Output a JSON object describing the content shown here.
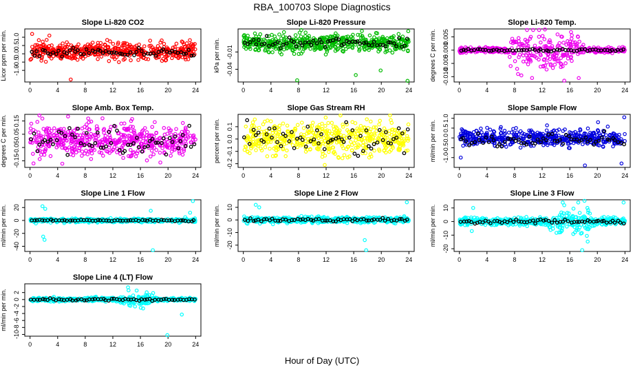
{
  "page": {
    "title": "RBA_100703  Slope Diagnostics",
    "xlabel": "Hour of Day (UTC)"
  },
  "colors": {
    "axis": "#000000",
    "overlay_points": "#000000"
  },
  "chart_data": [
    {
      "type": "scatter",
      "title": "Slope Li-820 CO2",
      "ylabel": "Licor ppm per min.",
      "xlim": [
        0,
        24
      ],
      "ylim": [
        -1.7,
        1.5
      ],
      "yticks": [
        -1.0,
        -0.5,
        0.0,
        0.5,
        1.0
      ],
      "ytick_labels": [
        "-1.0",
        "-0.5",
        "0.0",
        "0.5",
        "1.0"
      ],
      "xticks": [
        0,
        4,
        8,
        12,
        16,
        20,
        24
      ],
      "color": "#ff0000",
      "series_center": 0.15,
      "series_spread": 0.28,
      "overlay_center": 0.1,
      "overlay_spread": 0.15,
      "outliers": [
        {
          "x": 0.3,
          "y": 1.2
        },
        {
          "x": 5.9,
          "y": -1.55
        },
        {
          "x": 2.8,
          "y": 1.1
        }
      ]
    },
    {
      "type": "scatter",
      "title": "Slope Li-820 Pressure",
      "ylabel": "kPa per min.",
      "xlim": [
        0,
        24
      ],
      "ylim": [
        -0.062,
        0.03
      ],
      "yticks": [
        -0.04,
        -0.01
      ],
      "ytick_labels": [
        "-0.04",
        "-0.01"
      ],
      "xticks": [
        0,
        4,
        8,
        12,
        16,
        20,
        24
      ],
      "color": "#00bb00",
      "series_center": 0.005,
      "series_spread": 0.008,
      "overlay_center": 0.005,
      "overlay_spread": 0.006,
      "outliers": [
        {
          "x": 7.8,
          "y": -0.059
        },
        {
          "x": 16.3,
          "y": -0.05
        },
        {
          "x": 23.8,
          "y": -0.06
        },
        {
          "x": 19.9,
          "y": -0.042
        }
      ]
    },
    {
      "type": "scatter",
      "title": "Slope Li-820 Temp.",
      "ylabel": "degrees C per min.",
      "xlim": [
        0,
        24
      ],
      "ylim": [
        -0.012,
        0.008
      ],
      "yticks": [
        -0.01,
        -0.005,
        0.0,
        0.005
      ],
      "ytick_labels": [
        "-0.010",
        "-0.005",
        "0.000",
        "0.005"
      ],
      "xticks": [
        0,
        4,
        8,
        12,
        16,
        20,
        24
      ],
      "color": "#ee00ee",
      "series_center": 0.0,
      "series_spread": 0.0005,
      "overlay_center": 0.0,
      "overlay_spread": 0.0003,
      "burst": {
        "from": 7,
        "to": 18,
        "spread": 0.004
      },
      "outliers": [
        {
          "x": 15.2,
          "y": -0.0115
        },
        {
          "x": 8.5,
          "y": -0.009
        },
        {
          "x": 12.4,
          "y": 0.0078
        }
      ]
    },
    {
      "type": "scatter",
      "title": "Slope Amb. Box Temp.",
      "ylabel": "degrees C per min.",
      "xlim": [
        0,
        24
      ],
      "ylim": [
        -0.2,
        0.2
      ],
      "yticks": [
        -0.15,
        -0.05,
        0.05,
        0.15
      ],
      "ytick_labels": [
        "-0.15",
        "-0.05",
        "0.05",
        "0.15"
      ],
      "xticks": [
        0,
        4,
        8,
        12,
        16,
        20,
        24
      ],
      "color": "#ee00ee",
      "series_center": 0.0,
      "series_spread": 0.07,
      "overlay_center": 0.0,
      "overlay_spread": 0.06,
      "outliers": [
        {
          "x": 10.5,
          "y": 0.17
        },
        {
          "x": 14.8,
          "y": 0.165
        },
        {
          "x": 0.5,
          "y": -0.17
        }
      ]
    },
    {
      "type": "scatter",
      "title": "Slope Gas Stream RH",
      "ylabel": "percent per min.",
      "xlim": [
        0,
        24
      ],
      "ylim": [
        -0.23,
        0.2
      ],
      "yticks": [
        -0.2,
        -0.1,
        0.0,
        0.1
      ],
      "ytick_labels": [
        "-0.2",
        "-0.1",
        "0.0",
        "0.1"
      ],
      "xticks": [
        0,
        4,
        8,
        12,
        16,
        20,
        24
      ],
      "color": "#ffff00",
      "series_center": 0.0,
      "series_spread": 0.07,
      "overlay_center": 0.0,
      "overlay_spread": 0.07,
      "outliers": [
        {
          "x": 11.8,
          "y": -0.21
        },
        {
          "x": 17.9,
          "y": 0.16
        },
        {
          "x": 3.5,
          "y": 0.15
        }
      ]
    },
    {
      "type": "scatter",
      "title": "Slope Sample Flow",
      "ylabel": "ml/min per min.",
      "xlim": [
        0,
        24
      ],
      "ylim": [
        -1.5,
        1.2
      ],
      "yticks": [
        -1.0,
        -0.5,
        0.0,
        0.5,
        1.0
      ],
      "ytick_labels": [
        "-1.0",
        "-0.5",
        "0.0",
        "0.5",
        "1.0"
      ],
      "xticks": [
        0,
        4,
        8,
        12,
        16,
        20,
        24
      ],
      "color": "#0000dd",
      "series_center": 0.0,
      "series_spread": 0.22,
      "overlay_center": -0.1,
      "overlay_spread": 0.2,
      "outliers": [
        {
          "x": 18.2,
          "y": -1.4
        },
        {
          "x": 23.5,
          "y": -1.3
        },
        {
          "x": 23.9,
          "y": 1.05
        },
        {
          "x": 20.1,
          "y": 0.8
        },
        {
          "x": 0.2,
          "y": -1.0
        }
      ]
    },
    {
      "type": "scatter",
      "title": "Slope Line 1 Flow",
      "ylabel": "ml/min per min.",
      "xlim": [
        0,
        24
      ],
      "ylim": [
        -48,
        32
      ],
      "yticks": [
        -40,
        -20,
        0,
        20
      ],
      "ytick_labels": [
        "-40",
        "-20",
        "0",
        "20"
      ],
      "xticks": [
        0,
        4,
        8,
        12,
        16,
        20,
        24
      ],
      "color": "#00ffff",
      "series_center": 0.0,
      "series_spread": 1.5,
      "overlay_center": 0.0,
      "overlay_spread": 0.8,
      "outliers": [
        {
          "x": 1.8,
          "y": 22
        },
        {
          "x": 2.2,
          "y": 18
        },
        {
          "x": 1.9,
          "y": -25
        },
        {
          "x": 2.1,
          "y": -30
        },
        {
          "x": 17.8,
          "y": -46
        },
        {
          "x": 17.5,
          "y": 15
        },
        {
          "x": 23.6,
          "y": 30
        },
        {
          "x": 23.2,
          "y": 12
        }
      ]
    },
    {
      "type": "scatter",
      "title": "Slope Line 2 Flow",
      "ylabel": "ml/min per min.",
      "xlim": [
        0,
        24
      ],
      "ylim": [
        -25,
        16
      ],
      "yticks": [
        -20,
        -10,
        0,
        10
      ],
      "ytick_labels": [
        "-20",
        "-10",
        "0",
        "10"
      ],
      "xticks": [
        0,
        4,
        8,
        12,
        16,
        20,
        24
      ],
      "color": "#00ffff",
      "series_center": 0.0,
      "series_spread": 1.2,
      "overlay_center": 0.0,
      "overlay_spread": 0.8,
      "outliers": [
        {
          "x": 1.8,
          "y": 12
        },
        {
          "x": 2.3,
          "y": 10
        },
        {
          "x": 17.8,
          "y": -24
        },
        {
          "x": 17.6,
          "y": -16
        },
        {
          "x": 23.7,
          "y": 14
        },
        {
          "x": 0.6,
          "y": -3
        }
      ]
    },
    {
      "type": "scatter",
      "title": "Slope Line 3 Flow",
      "ylabel": "ml/min per min.",
      "xlim": [
        0,
        24
      ],
      "ylim": [
        -22,
        16
      ],
      "yticks": [
        -20,
        -10,
        0,
        10
      ],
      "ytick_labels": [
        "-20",
        "-10",
        "0",
        "10"
      ],
      "xticks": [
        0,
        4,
        8,
        12,
        16,
        20,
        24
      ],
      "color": "#00ffff",
      "series_center": 0.0,
      "series_spread": 1.5,
      "overlay_center": 0.0,
      "overlay_spread": 1.0,
      "burst": {
        "from": 13,
        "to": 19,
        "spread": 6
      },
      "outliers": [
        {
          "x": 2.0,
          "y": 10
        },
        {
          "x": 1.8,
          "y": -7
        },
        {
          "x": 17.8,
          "y": -21
        },
        {
          "x": 23.8,
          "y": 14
        },
        {
          "x": 15.2,
          "y": 12
        }
      ]
    },
    {
      "type": "scatter",
      "title": "Slope Line 4 (LT) Flow",
      "ylabel": "ml/min per min.",
      "xlim": [
        0,
        24
      ],
      "ylim": [
        -10.5,
        4.5
      ],
      "yticks": [
        -10,
        -8,
        -6,
        -4,
        -2,
        0,
        2
      ],
      "ytick_labels": [
        "-10",
        "-8",
        "-6",
        "-4",
        "-2",
        "0",
        "2"
      ],
      "xticks": [
        0,
        4,
        8,
        12,
        16,
        20,
        24
      ],
      "color": "#00ffff",
      "series_center": 0.0,
      "series_spread": 0.3,
      "overlay_center": 0.0,
      "overlay_spread": 0.2,
      "burst": {
        "from": 13,
        "to": 18,
        "spread": 1.2
      },
      "outliers": [
        {
          "x": 19.9,
          "y": -10.2
        },
        {
          "x": 22.0,
          "y": -4.3
        },
        {
          "x": 14.2,
          "y": 3.5
        }
      ]
    }
  ]
}
